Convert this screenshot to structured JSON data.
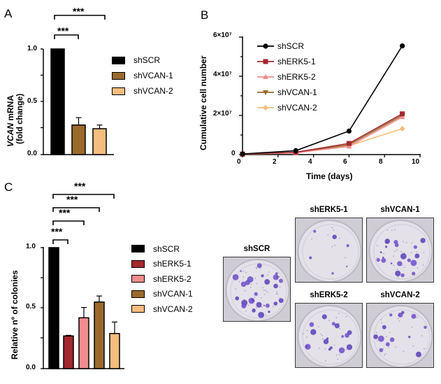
{
  "panels": {
    "A": {
      "letter": "A"
    },
    "B": {
      "letter": "B"
    },
    "C": {
      "letter": "C"
    }
  },
  "colors": {
    "shSCR": "#000000",
    "shERK5-1": "#a3282f",
    "shERK5-2": "#f08c8e",
    "shVCAN-1": "#9a6a2c",
    "shVCAN-2": "#f5bd7e"
  },
  "chart_data": [
    {
      "panel": "A",
      "type": "bar",
      "title": "",
      "ylabel_italic": "VCAN",
      "ylabel_rest": " mRNA",
      "ylabel_line2": "(fold change)",
      "ylabel": "VCAN mRNA (fold change)",
      "xlabel": "",
      "ylim": [
        0,
        1.0
      ],
      "yticks": [
        "0.0",
        "0.5",
        "1.0"
      ],
      "categories": [
        "shSCR",
        "shVCAN-1",
        "shVCAN-2"
      ],
      "values": [
        1.0,
        0.28,
        0.245
      ],
      "errors": [
        0,
        0.07,
        0.035
      ],
      "legend": [
        "shSCR",
        "shVCAN-1",
        "shVCAN-2"
      ],
      "legend_position": "right",
      "annotations": [
        {
          "from": "shSCR",
          "to": "shVCAN-1",
          "label": "***"
        },
        {
          "from": "shSCR",
          "to": "shVCAN-2",
          "label": "***"
        }
      ]
    },
    {
      "panel": "B",
      "type": "line",
      "title": "",
      "xlabel": "Time (days)",
      "ylabel": "Cumulative cell number",
      "xlim": [
        0,
        10
      ],
      "ylim": [
        0,
        60000000
      ],
      "xticks": [
        "0",
        "2",
        "4",
        "6",
        "8",
        "10"
      ],
      "yticks": [
        "0",
        "2×10⁷",
        "4×10⁷",
        "6×10⁷"
      ],
      "x": [
        0,
        3,
        6,
        9
      ],
      "series": [
        {
          "name": "shSCR",
          "marker": "circle",
          "values": [
            300000,
            2000000,
            12000000,
            55500000
          ]
        },
        {
          "name": "shERK5-1",
          "marker": "square",
          "values": [
            250000,
            1200000,
            5700000,
            20800000
          ]
        },
        {
          "name": "shERK5-2",
          "marker": "triangle-up",
          "values": [
            200000,
            900000,
            4200000,
            19200000
          ]
        },
        {
          "name": "shVCAN-1",
          "marker": "triangle-down",
          "values": [
            220000,
            1000000,
            5000000,
            20000000
          ]
        },
        {
          "name": "shVCAN-2",
          "marker": "diamond",
          "values": [
            200000,
            800000,
            4500000,
            13200000
          ]
        }
      ],
      "legend_position": "upper-left"
    },
    {
      "panel": "C",
      "type": "bar",
      "title": "",
      "ylabel": "Relative nº of colonies",
      "xlabel": "",
      "ylim": [
        0,
        1.0
      ],
      "yticks": [
        "0.0",
        "0.5",
        "1.0"
      ],
      "categories": [
        "shSCR",
        "shERK5-1",
        "shERK5-2",
        "shVCAN-1",
        "shVCAN-2"
      ],
      "values": [
        1.0,
        0.27,
        0.42,
        0.55,
        0.29
      ],
      "errors": [
        0,
        0.005,
        0.085,
        0.05,
        0.095
      ],
      "legend": [
        "shSCR",
        "shERK5-1",
        "shERK5-2",
        "shVCAN-1",
        "shVCAN-2"
      ],
      "legend_position": "right",
      "annotations": [
        {
          "from": "shSCR",
          "to": "shERK5-1",
          "label": "***"
        },
        {
          "from": "shSCR",
          "to": "shERK5-2",
          "label": "***"
        },
        {
          "from": "shSCR",
          "to": "shVCAN-1",
          "label": "***"
        },
        {
          "from": "shSCR",
          "to": "shVCAN-2",
          "label": "***"
        }
      ]
    }
  ],
  "photos": [
    {
      "label": "shSCR"
    },
    {
      "label": "shERK5-1"
    },
    {
      "label": "shVCAN-1"
    },
    {
      "label": "shERK5-2"
    },
    {
      "label": "shVCAN-2"
    }
  ]
}
